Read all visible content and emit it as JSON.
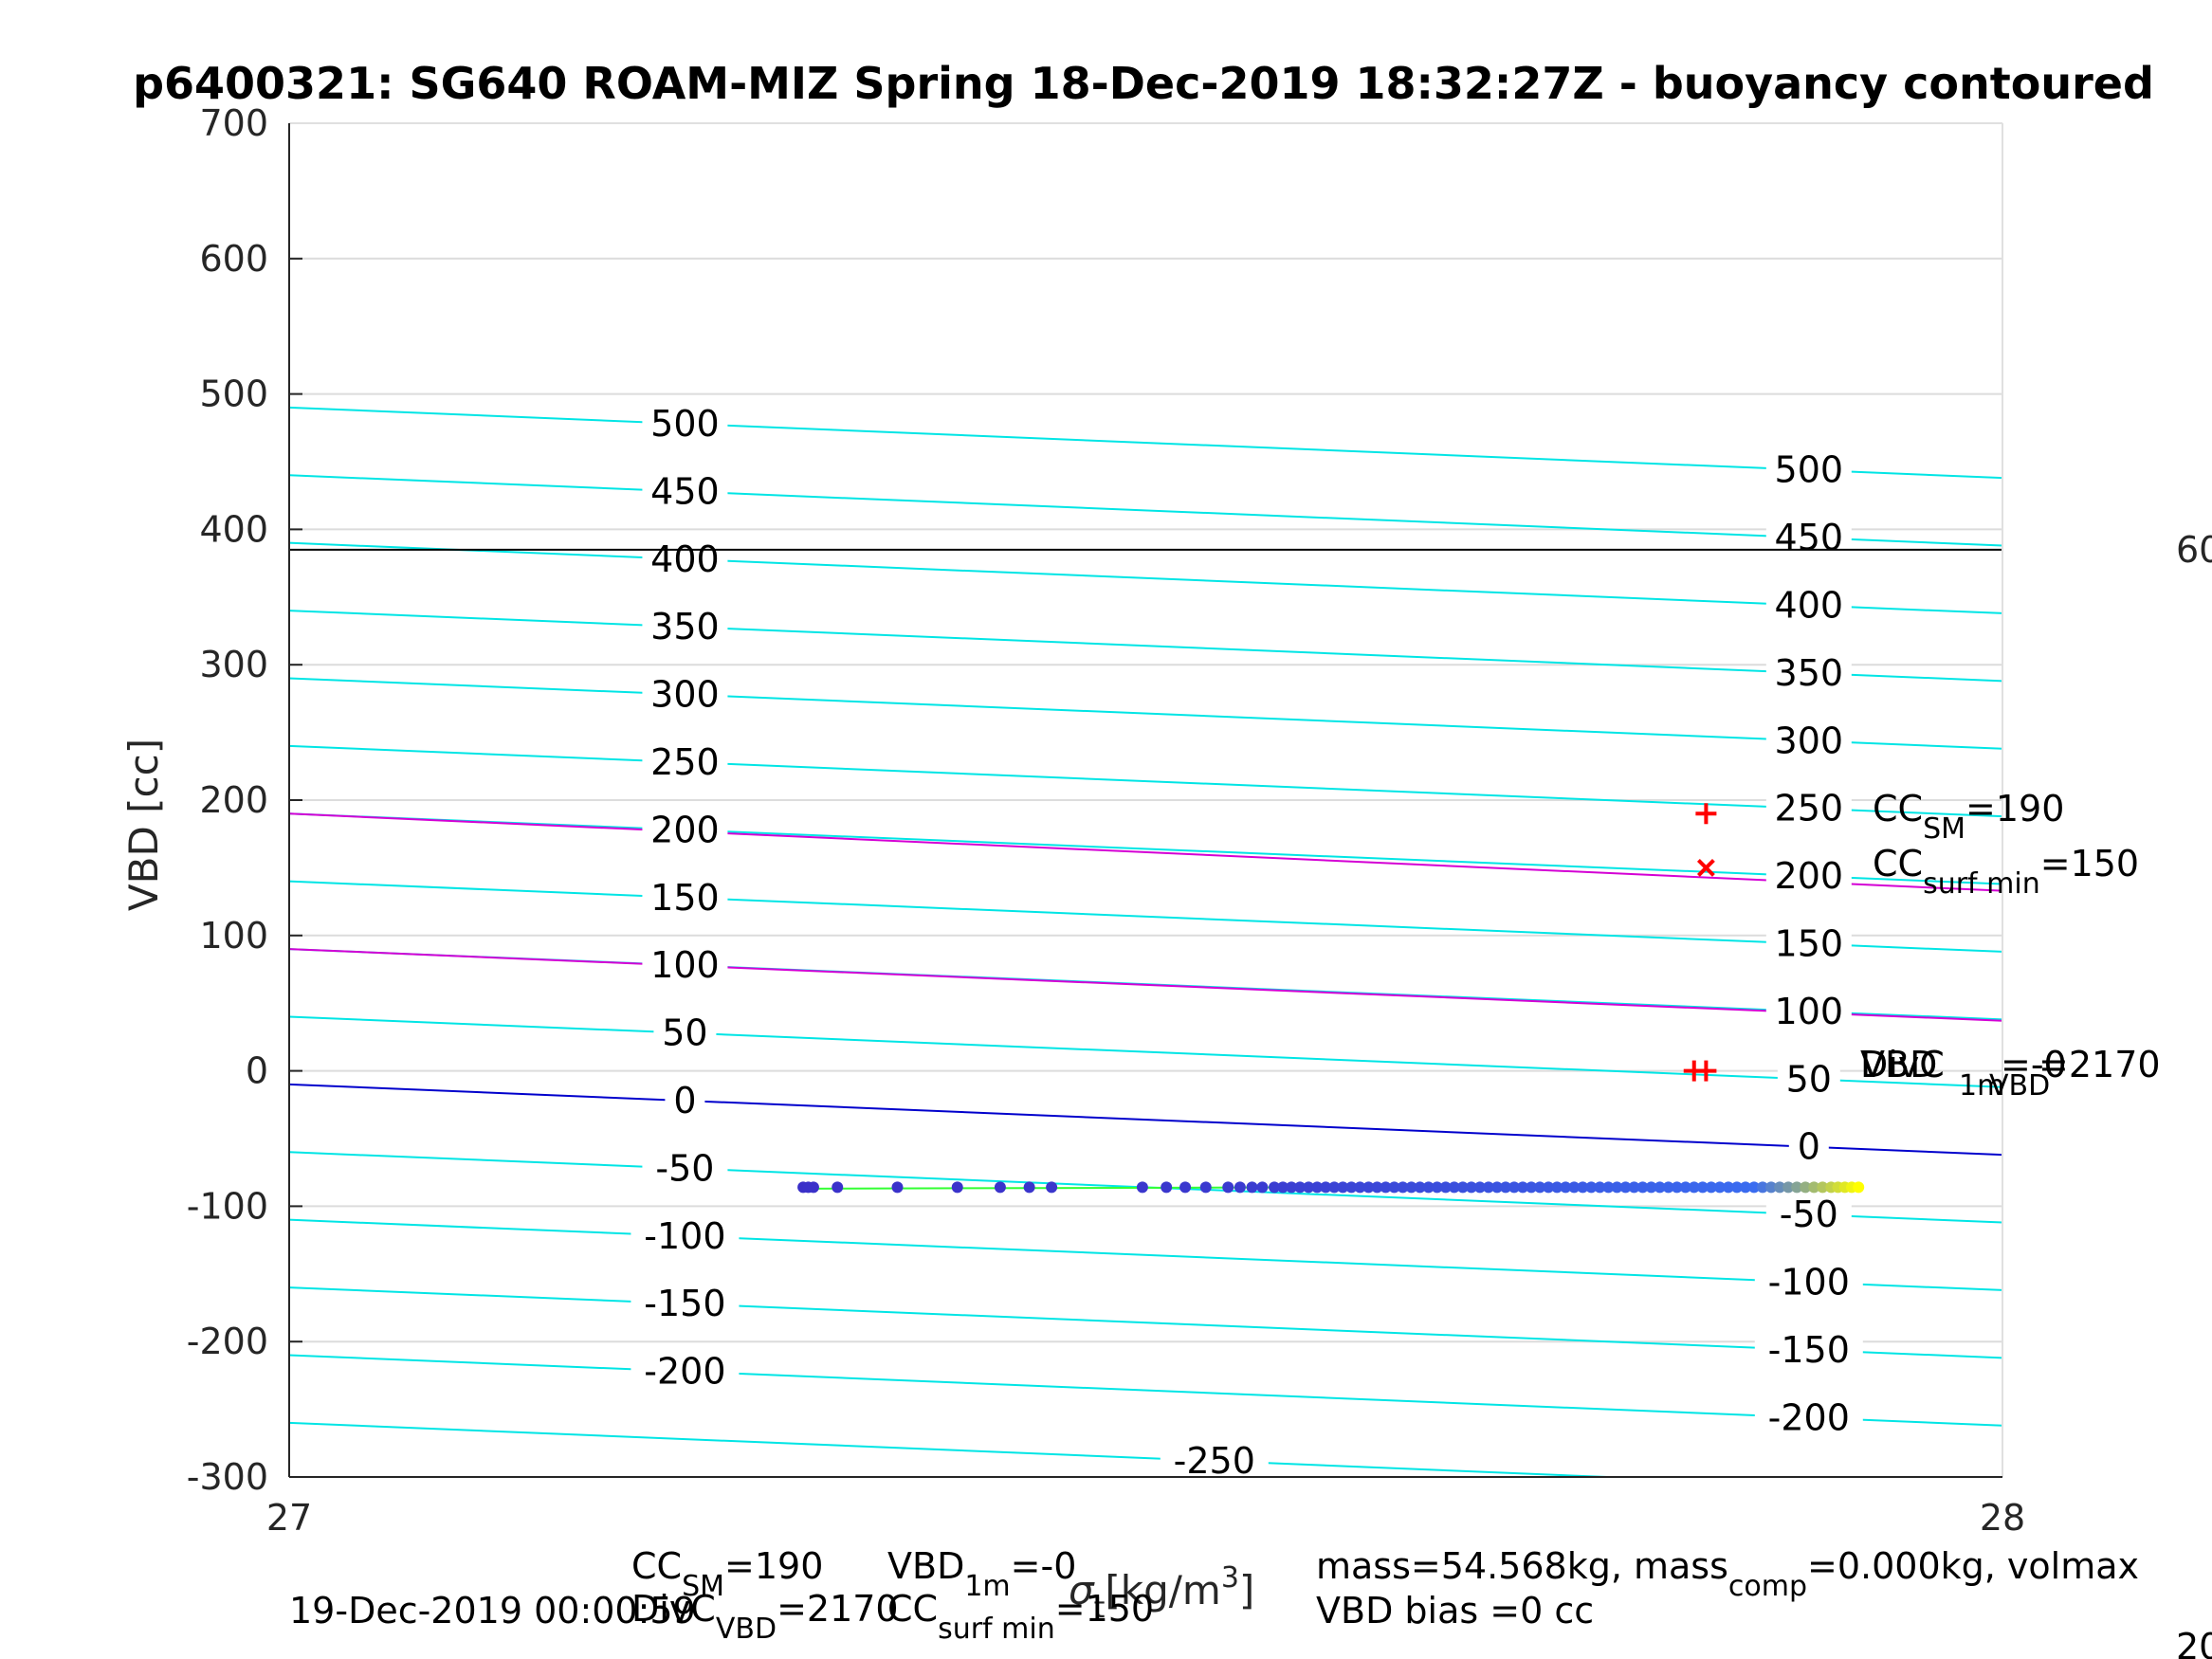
{
  "chart_data": {
    "type": "scatter",
    "title": "p6400321: SG640 ROAM-MIZ Spring 18-Dec-2019 18:32:27Z - buoyancy contoured",
    "xlabel_main": "σ",
    "xlabel_sub": "t",
    "xlabel_units": "[kg/m",
    "xlabel_exp": "3",
    "xlabel_close": "]",
    "ylabel": "VBD [cc]",
    "xlim": [
      27,
      28
    ],
    "ylim": [
      -300,
      700
    ],
    "x_ticks": [
      "27",
      "28"
    ],
    "y_ticks": [
      "-300",
      "-200",
      "-100",
      "0",
      "100",
      "200",
      "300",
      "400",
      "500",
      "600",
      "700"
    ],
    "grid": true,
    "contours": {
      "levels": [
        -250,
        -200,
        -150,
        -100,
        -50,
        0,
        50,
        100,
        150,
        200,
        250,
        300,
        350,
        400,
        450,
        500
      ],
      "colors": {
        "regular": "#00e5e5",
        "zero": "#0000cc",
        "magenta": "#d400d4"
      },
      "left_labels": [
        "500",
        "450",
        "400",
        "350",
        "300",
        "250",
        "200",
        "150",
        "100",
        "50",
        "0",
        "-50",
        "-100",
        "-150",
        "-200"
      ],
      "right_labels": [
        "500",
        "450",
        "400",
        "350",
        "300",
        "250",
        "200",
        "150",
        "100",
        "50",
        "0",
        "-50",
        "-100",
        "-150",
        "-200"
      ],
      "bottom_label": "-250"
    },
    "magenta_lines": [
      {
        "y_start": 190,
        "y_end": 133
      },
      {
        "y_start": 90,
        "y_end": 37
      }
    ],
    "reference_line": {
      "value": 385,
      "color": "#000000",
      "label": "60"
    },
    "series": [
      {
        "x": [
          27.3,
          27.303,
          27.306,
          27.32,
          27.355,
          27.39,
          27.415,
          27.432,
          27.445,
          27.498,
          27.512,
          27.523,
          27.535,
          27.548,
          27.555,
          27.562,
          27.568,
          27.575,
          27.58,
          27.585,
          27.59,
          27.595,
          27.6,
          27.605,
          27.61,
          27.615,
          27.62,
          27.625,
          27.63,
          27.635,
          27.64,
          27.645,
          27.65,
          27.655,
          27.66,
          27.665,
          27.67,
          27.675,
          27.68,
          27.685,
          27.69,
          27.695,
          27.7,
          27.705,
          27.71,
          27.715,
          27.72,
          27.725,
          27.73,
          27.735,
          27.74,
          27.745,
          27.75,
          27.755,
          27.76,
          27.765,
          27.77,
          27.775,
          27.78,
          27.785,
          27.79,
          27.795,
          27.8,
          27.805,
          27.81,
          27.815,
          27.82,
          27.825,
          27.83,
          27.835,
          27.84,
          27.845,
          27.85,
          27.855,
          27.86,
          27.865,
          27.87,
          27.875,
          27.88,
          27.885,
          27.89,
          27.895,
          27.9,
          27.904,
          27.908,
          27.912,
          27.916
        ],
        "y": [
          -86,
          -86,
          -86,
          -86,
          -86,
          -86,
          -86,
          -86,
          -86,
          -86,
          -86,
          -86,
          -86,
          -86,
          -86,
          -86,
          -86,
          -86,
          -86,
          -86,
          -86,
          -86,
          -86,
          -86,
          -86,
          -86,
          -86,
          -86,
          -86,
          -86,
          -86,
          -86,
          -86,
          -86,
          -86,
          -86,
          -86,
          -86,
          -86,
          -86,
          -86,
          -86,
          -86,
          -86,
          -86,
          -86,
          -86,
          -86,
          -86,
          -86,
          -86,
          -86,
          -86,
          -86,
          -86,
          -86,
          -86,
          -86,
          -86,
          -86,
          -86,
          -86,
          -86,
          -86,
          -86,
          -86,
          -86,
          -86,
          -86,
          -86,
          -86,
          -86,
          -86,
          -86,
          -86,
          -86,
          -86,
          -86,
          -86,
          -86,
          -86,
          -86,
          -86,
          -86,
          -86,
          -86,
          -86
        ]
      }
    ],
    "fit_line": {
      "x": [
        27.3,
        27.915
      ],
      "y": [
        -87,
        -85
      ],
      "color": "#33ff33"
    },
    "colormap": {
      "start": "#3a2fc8",
      "mid": "#3a6cf0",
      "end": "#ffff00"
    },
    "markers": [
      {
        "shape": "plus",
        "x": 27.827,
        "y": 190,
        "color": "#ff0000"
      },
      {
        "shape": "x",
        "x": 27.827,
        "y": 150,
        "color": "#ff0000"
      },
      {
        "shape": "plus",
        "x": 27.82,
        "y": 0,
        "color": "#ff0000"
      },
      {
        "shape": "plus",
        "x": 27.827,
        "y": 0,
        "color": "#ff0000"
      }
    ],
    "annotations": {
      "cc_sm": {
        "main": "CC",
        "sub": "SM",
        "rest": "=190"
      },
      "cc_surf": {
        "main": "CC",
        "sub": "surf min",
        "rest": "=150"
      },
      "vbd_over_a": "DivC",
      "vbd_over_b": "VBD",
      "vbd_over_sub": "1m",
      "vbd_over_c": "=-0",
      "vbd_over_d": "=2170",
      "vbd_over_sub2": "VBD"
    },
    "footer": {
      "line1_a_main": "CC",
      "line1_a_sub": "SM",
      "line1_a_rest": "=190",
      "line1_b_main": "VBD",
      "line1_b_sub": "1m",
      "line1_b_rest": "=-0",
      "line2_a": "DivC",
      "line2_a_sub": "VBD",
      "line2_a_rest": "=2170",
      "line2_b_main": "CC",
      "line2_b_sub": "surf min",
      "line2_b_rest": "=150",
      "timestamp": "19-Dec-2019 00:00:59",
      "mass_text": "mass=54.568kg, mass",
      "mass_sub": "comp",
      "mass_rest": "=0.000kg, volmax",
      "bias_text": "VBD bias =0 cc",
      "edge_text": "20"
    }
  }
}
